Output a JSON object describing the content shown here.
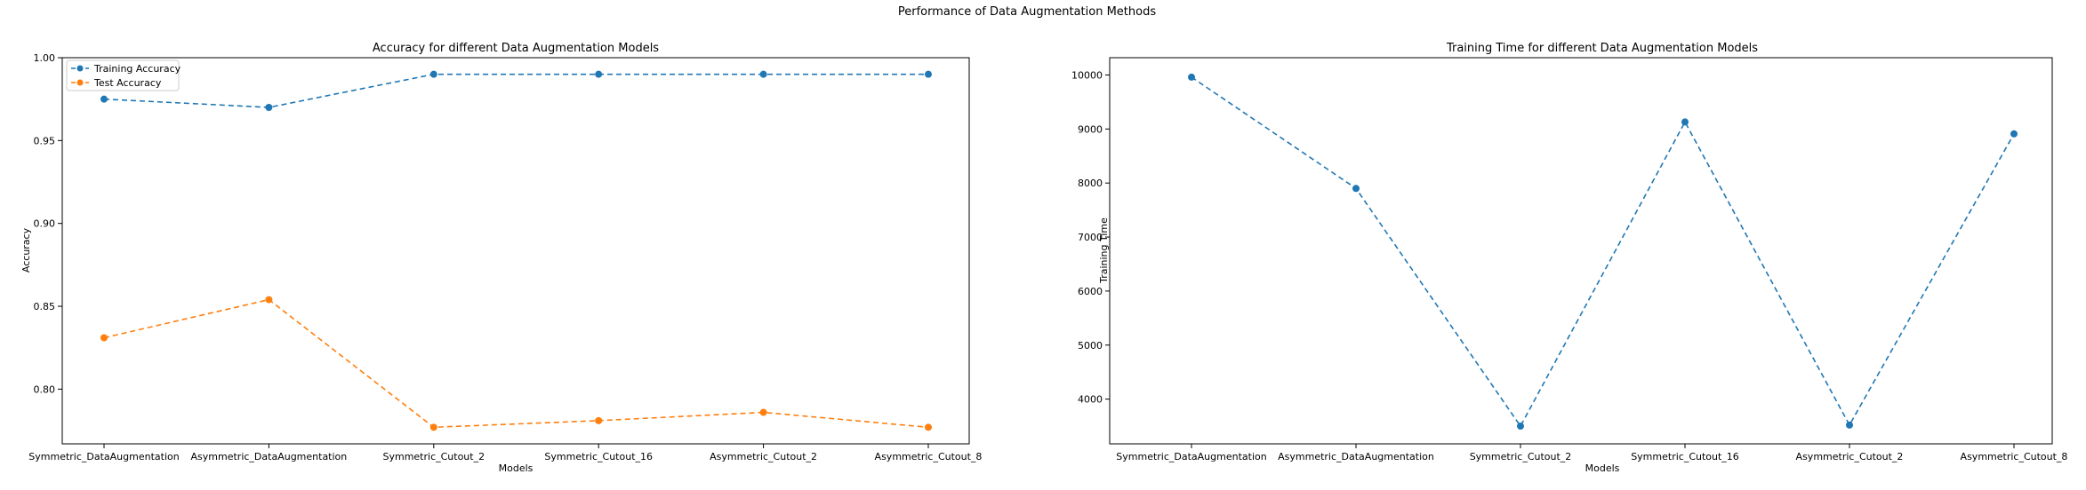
{
  "suptitle": "Performance of Data Augmentation Methods",
  "chart_data": [
    {
      "type": "line",
      "title": "Accuracy for different Data Augmentation Models",
      "xlabel": "Models",
      "ylabel": "Accuracy",
      "categories": [
        "Symmetric_DataAugmentation",
        "Asymmetric_DataAugmentation",
        "Symmetric_Cutout_2",
        "Symmetric_Cutout_16",
        "Asymmetric_Cutout_2",
        "Asymmetric_Cutout_8"
      ],
      "ylim": [
        0.767,
        1.0
      ],
      "yticks": [
        0.8,
        0.85,
        0.9,
        0.95,
        1.0
      ],
      "ytick_labels": [
        "0.80",
        "0.85",
        "0.90",
        "0.95",
        "1.00"
      ],
      "legend_position": "upper-left",
      "grid": false,
      "series": [
        {
          "name": "Training Accuracy",
          "color": "#1f77b4",
          "values": [
            0.975,
            0.97,
            0.99,
            0.99,
            0.99,
            0.99
          ]
        },
        {
          "name": "Test Accuracy",
          "color": "#ff7f0e",
          "values": [
            0.831,
            0.854,
            0.777,
            0.781,
            0.786,
            0.777
          ]
        }
      ]
    },
    {
      "type": "line",
      "title": "Training Time for different Data Augmentation Models",
      "xlabel": "Models",
      "ylabel": "Training Time",
      "categories": [
        "Symmetric_DataAugmentation",
        "Asymmetric_DataAugmentation",
        "Symmetric_Cutout_2",
        "Symmetric_Cutout_16",
        "Asymmetric_Cutout_2",
        "Asymmetric_Cutout_8"
      ],
      "ylim": [
        3172,
        10320
      ],
      "yticks": [
        4000,
        5000,
        6000,
        7000,
        8000,
        9000,
        10000
      ],
      "ytick_labels": [
        "4000",
        "5000",
        "6000",
        "7000",
        "8000",
        "9000",
        "10000"
      ],
      "grid": false,
      "series": [
        {
          "color": "#1f77b4",
          "values": [
            9960,
            7900,
            3500,
            9130,
            3520,
            8910
          ]
        }
      ]
    }
  ]
}
